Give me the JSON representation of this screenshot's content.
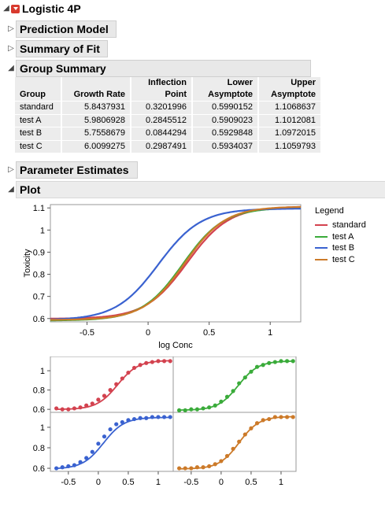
{
  "report": {
    "title": "Logistic 4P"
  },
  "sections": {
    "prediction_model": "Prediction Model",
    "summary_of_fit": "Summary of Fit",
    "group_summary": "Group Summary",
    "parameter_estimates": "Parameter Estimates",
    "plot": "Plot"
  },
  "group_summary_table": {
    "headers": [
      [
        "",
        "Group"
      ],
      [
        "",
        "Growth Rate"
      ],
      [
        "Inflection",
        "Point"
      ],
      [
        "Lower",
        "Asymptote"
      ],
      [
        "Upper",
        "Asymptote"
      ]
    ],
    "rows": [
      [
        "standard",
        "5.8437931",
        "0.3201996",
        "0.5990152",
        "1.1068637"
      ],
      [
        "test A",
        "5.9806928",
        "0.2845512",
        "0.5909023",
        "1.1012081"
      ],
      [
        "test B",
        "5.7558679",
        "0.0844294",
        "0.5929848",
        "1.0972015"
      ],
      [
        "test C",
        "6.0099275",
        "0.2987491",
        "0.5934037",
        "1.1059793"
      ]
    ]
  },
  "legend": {
    "title": "Legend",
    "items": [
      {
        "label": "standard",
        "color": "#d3424f"
      },
      {
        "label": "test A",
        "color": "#3aab3a"
      },
      {
        "label": "test B",
        "color": "#3a62d0"
      },
      {
        "label": "test C",
        "color": "#cc7a29"
      }
    ]
  },
  "chart_data": [
    {
      "type": "line",
      "xlabel": "log Conc",
      "ylabel": "Toxicity",
      "xlim": [
        -0.8,
        1.25
      ],
      "ylim": [
        0.585,
        1.115
      ],
      "x_ticks": [
        "-0.5",
        "0",
        "0.5",
        "1"
      ],
      "y_ticks": [
        "0.6",
        "0.7",
        "0.8",
        "0.9",
        "1",
        "1.1"
      ],
      "series": [
        {
          "name": "standard",
          "growth_rate": 5.8437931,
          "inflection": 0.3201996,
          "lower": 0.5990152,
          "upper": 1.1068637
        },
        {
          "name": "test A",
          "growth_rate": 5.9806928,
          "inflection": 0.2845512,
          "lower": 0.5909023,
          "upper": 1.1012081
        },
        {
          "name": "test B",
          "growth_rate": 5.7558679,
          "inflection": 0.0844294,
          "lower": 0.5929848,
          "upper": 1.0972015
        },
        {
          "name": "test C",
          "growth_rate": 6.0099275,
          "inflection": 0.2987491,
          "lower": 0.5934037,
          "upper": 1.1059793
        }
      ]
    },
    {
      "type": "scatter",
      "xlim": [
        -0.8,
        1.25
      ],
      "ylim": [
        0.585,
        1.115
      ],
      "x_ticks": [
        "-0.5",
        "0",
        "0.5",
        "1"
      ],
      "y_ticks": [
        "0.6",
        "0.8",
        "1"
      ],
      "x_points": [
        -0.7,
        -0.6,
        -0.5,
        -0.4,
        -0.3,
        -0.2,
        -0.1,
        0.0,
        0.1,
        0.2,
        0.3,
        0.4,
        0.5,
        0.6,
        0.7,
        0.8,
        0.9,
        1.0,
        1.1,
        1.2
      ],
      "panels": [
        {
          "name": "standard",
          "y": [
            0.61,
            0.6,
            0.6,
            0.61,
            0.62,
            0.64,
            0.66,
            0.7,
            0.74,
            0.8,
            0.86,
            0.92,
            0.98,
            1.03,
            1.06,
            1.08,
            1.09,
            1.1,
            1.1,
            1.1
          ]
        },
        {
          "name": "test A",
          "y": [
            0.59,
            0.59,
            0.6,
            0.6,
            0.61,
            0.62,
            0.64,
            0.68,
            0.73,
            0.79,
            0.87,
            0.93,
            0.99,
            1.04,
            1.06,
            1.08,
            1.09,
            1.1,
            1.1,
            1.1
          ]
        },
        {
          "name": "test B",
          "y": [
            0.6,
            0.61,
            0.62,
            0.63,
            0.66,
            0.7,
            0.76,
            0.84,
            0.91,
            0.98,
            1.03,
            1.05,
            1.07,
            1.08,
            1.09,
            1.09,
            1.1,
            1.1,
            1.1,
            1.1
          ]
        },
        {
          "name": "test C",
          "y": [
            0.6,
            0.6,
            0.6,
            0.61,
            0.61,
            0.62,
            0.64,
            0.67,
            0.72,
            0.79,
            0.86,
            0.93,
            0.99,
            1.04,
            1.07,
            1.08,
            1.1,
            1.1,
            1.1,
            1.1
          ]
        }
      ]
    }
  ]
}
